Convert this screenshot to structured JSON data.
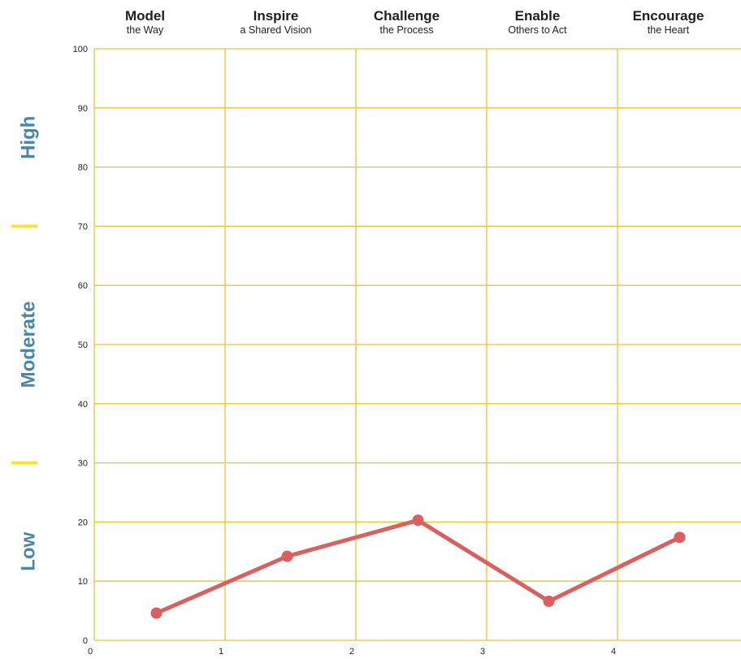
{
  "chart_data": {
    "type": "line",
    "categories": [
      {
        "title": "Model",
        "subtitle": "the Way"
      },
      {
        "title": "Inspire",
        "subtitle": "a Shared Vision"
      },
      {
        "title": "Challenge",
        "subtitle": "the Process"
      },
      {
        "title": "Enable",
        "subtitle": "Others to Act"
      },
      {
        "title": "Encourage",
        "subtitle": "the Heart"
      }
    ],
    "x": [
      0.5,
      1.5,
      2.5,
      3.5,
      4.5
    ],
    "series": [
      {
        "values": [
          4.6,
          14.2,
          20.3,
          6.6,
          17.4
        ]
      }
    ],
    "xlim": [
      0,
      5
    ],
    "ylim": [
      0,
      100
    ],
    "x_ticks": [
      "0",
      "1",
      "2",
      "3",
      "4"
    ],
    "y_ticks": [
      "0",
      "10",
      "20",
      "30",
      "40",
      "50",
      "60",
      "70",
      "80",
      "90",
      "100"
    ],
    "bands": [
      {
        "label": "High",
        "from": 70,
        "to": 100
      },
      {
        "label": "Moderate",
        "from": 30,
        "to": 70
      },
      {
        "label": "Low",
        "from": 0,
        "to": 30
      }
    ],
    "band_dividers": [
      70,
      30
    ],
    "grid": true,
    "colors": {
      "line": "#d9605e",
      "grid": "#e8c33a",
      "band_label": "#4a86a8",
      "divider": "#f5e431"
    }
  }
}
